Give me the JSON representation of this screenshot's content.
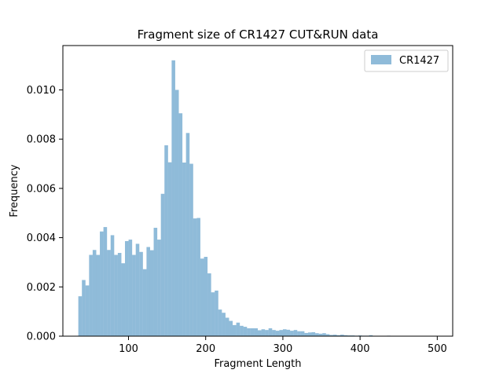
{
  "chart_data": {
    "type": "bar",
    "title": "Fragment size of CR1427 CUT&RUN data",
    "xlabel": "Fragment Length",
    "ylabel": "Frequency",
    "xlim": [
      15,
      520
    ],
    "ylim": [
      0,
      0.0118
    ],
    "xticks": [
      100,
      200,
      300,
      400,
      500
    ],
    "xtick_labels": [
      "100",
      "200",
      "300",
      "400",
      "500"
    ],
    "yticks": [
      0,
      0.002,
      0.004,
      0.006,
      0.008,
      0.01
    ],
    "ytick_labels": [
      "0.000",
      "0.002",
      "0.004",
      "0.006",
      "0.008",
      "0.010"
    ],
    "legend_position": "top-right",
    "series": [
      {
        "name": "CR1427",
        "color": "#1f77b4",
        "opacity": 0.5,
        "bin_width": 4.65,
        "bin_start": 35,
        "values": [
          0.00162,
          0.00228,
          0.00206,
          0.0033,
          0.0035,
          0.0033,
          0.00425,
          0.00443,
          0.0035,
          0.0041,
          0.0033,
          0.00338,
          0.00296,
          0.00386,
          0.00392,
          0.0033,
          0.00375,
          0.00342,
          0.00272,
          0.00362,
          0.00349,
          0.0044,
          0.00392,
          0.00578,
          0.00775,
          0.00706,
          0.0112,
          0.01,
          0.00905,
          0.00705,
          0.00825,
          0.007,
          0.00478,
          0.0048,
          0.00315,
          0.00322,
          0.00255,
          0.00178,
          0.00185,
          0.00108,
          0.00095,
          0.00075,
          0.00062,
          0.00045,
          0.00055,
          0.00042,
          0.00038,
          0.00032,
          0.00032,
          0.00032,
          0.00024,
          0.00028,
          0.00025,
          0.00032,
          0.00025,
          0.00022,
          0.00025,
          0.00028,
          0.00026,
          0.00022,
          0.00025,
          0.0002,
          0.0002,
          0.00013,
          0.00015,
          0.00016,
          0.00012,
          0.0001,
          0.00012,
          8e-05,
          5e-05,
          6e-05,
          4e-05,
          6e-05,
          4e-05,
          3e-05,
          3e-05,
          2e-05,
          3e-05,
          2e-05,
          2e-05,
          4e-05,
          1e-05,
          1e-05,
          1e-05,
          1e-05,
          2e-05,
          1e-05,
          1e-05,
          1e-05,
          1e-05,
          1e-05,
          1e-05,
          1e-05,
          1e-05,
          1e-05,
          1e-05,
          1e-05,
          1e-05,
          1e-05
        ]
      }
    ]
  }
}
